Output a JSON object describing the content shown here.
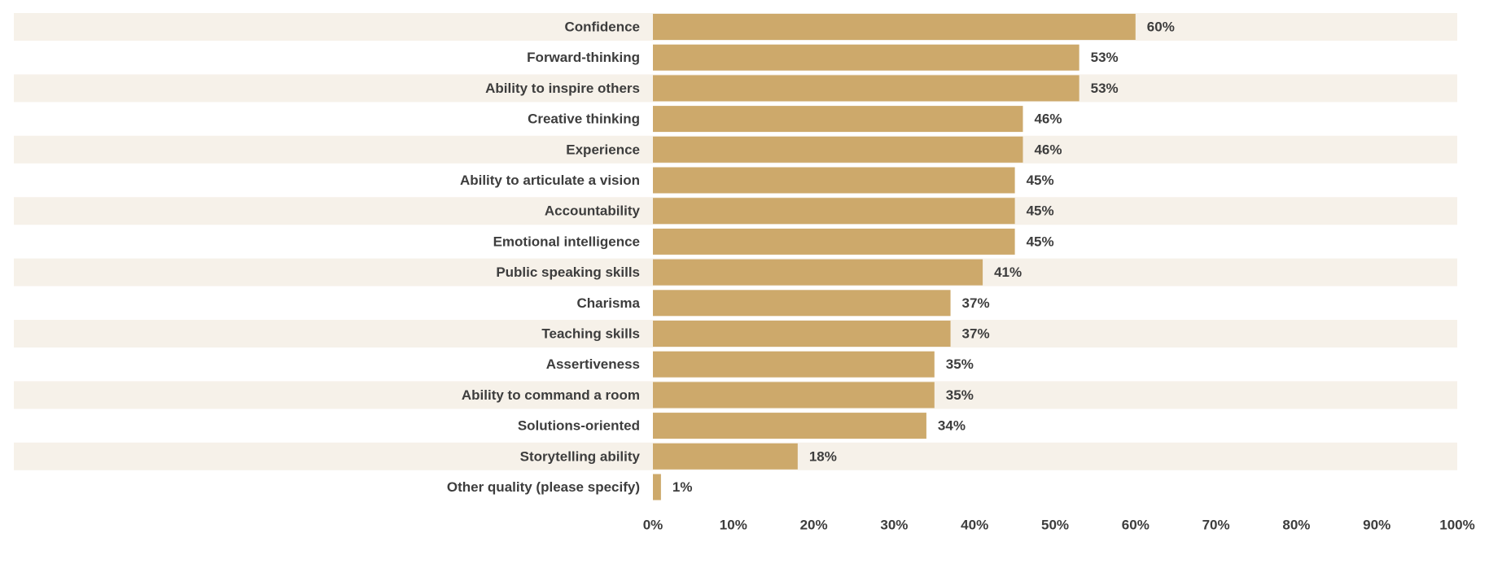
{
  "chart_data": {
    "type": "bar",
    "orientation": "horizontal",
    "categories": [
      "Confidence",
      "Forward-thinking",
      "Ability to inspire others",
      "Creative thinking",
      "Experience",
      "Ability to articulate a vision",
      "Accountability",
      "Emotional intelligence",
      "Public speaking skills",
      "Charisma",
      "Teaching skills",
      "Assertiveness",
      "Ability to command a room",
      "Solutions-oriented",
      "Storytelling ability",
      "Other quality (please specify)"
    ],
    "values": [
      60,
      53,
      53,
      46,
      46,
      45,
      45,
      45,
      41,
      37,
      37,
      35,
      35,
      34,
      18,
      1
    ],
    "value_labels": [
      "60%",
      "53%",
      "53%",
      "46%",
      "46%",
      "45%",
      "45%",
      "45%",
      "41%",
      "37%",
      "37%",
      "35%",
      "35%",
      "34%",
      "18%",
      "1%"
    ],
    "x_ticks": [
      "0%",
      "10%",
      "20%",
      "30%",
      "40%",
      "50%",
      "60%",
      "70%",
      "80%",
      "90%",
      "100%"
    ],
    "xlim": [
      0,
      100
    ],
    "grid": false,
    "alternating_row_bands": true,
    "colors": {
      "bar": "#cda96b",
      "band": "#f6f1e9",
      "text": "#3d3d3d"
    }
  }
}
